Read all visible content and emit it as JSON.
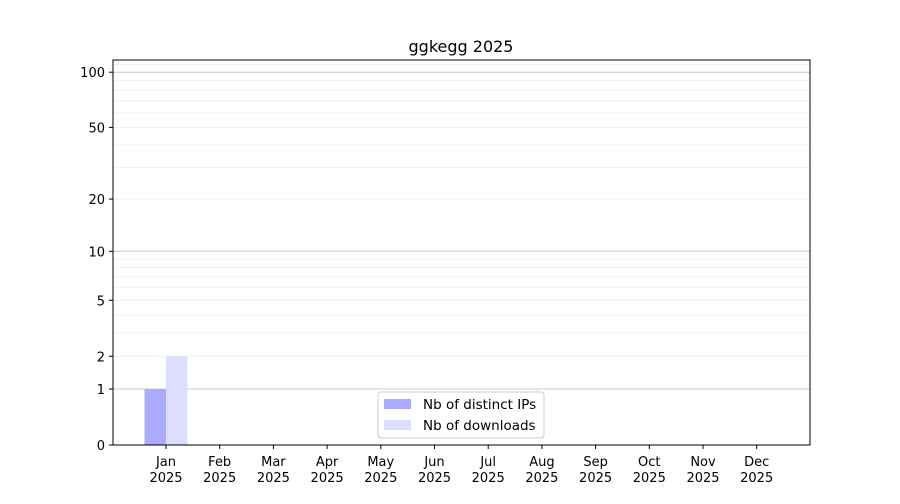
{
  "chart_data": {
    "type": "bar",
    "title": "ggkegg 2025",
    "xlabel": "",
    "ylabel": "",
    "yscale": "symlog",
    "ylim": [
      0,
      116
    ],
    "grid": true,
    "legend_position": "lower-center",
    "categories": [
      "Jan\n2025",
      "Feb\n2025",
      "Mar\n2025",
      "Apr\n2025",
      "May\n2025",
      "Jun\n2025",
      "Jul\n2025",
      "Aug\n2025",
      "Sep\n2025",
      "Oct\n2025",
      "Nov\n2025",
      "Dec\n2025"
    ],
    "yticks": [
      0,
      1,
      2,
      5,
      10,
      20,
      50,
      100
    ],
    "series": [
      {
        "name": "Nb of distinct IPs",
        "color": "#aaaaff",
        "values": [
          1,
          0,
          0,
          0,
          0,
          0,
          0,
          0,
          0,
          0,
          0,
          0
        ]
      },
      {
        "name": "Nb of downloads",
        "color": "#ddddff",
        "values": [
          2,
          0,
          0,
          0,
          0,
          0,
          0,
          0,
          0,
          0,
          0,
          0
        ]
      }
    ]
  }
}
